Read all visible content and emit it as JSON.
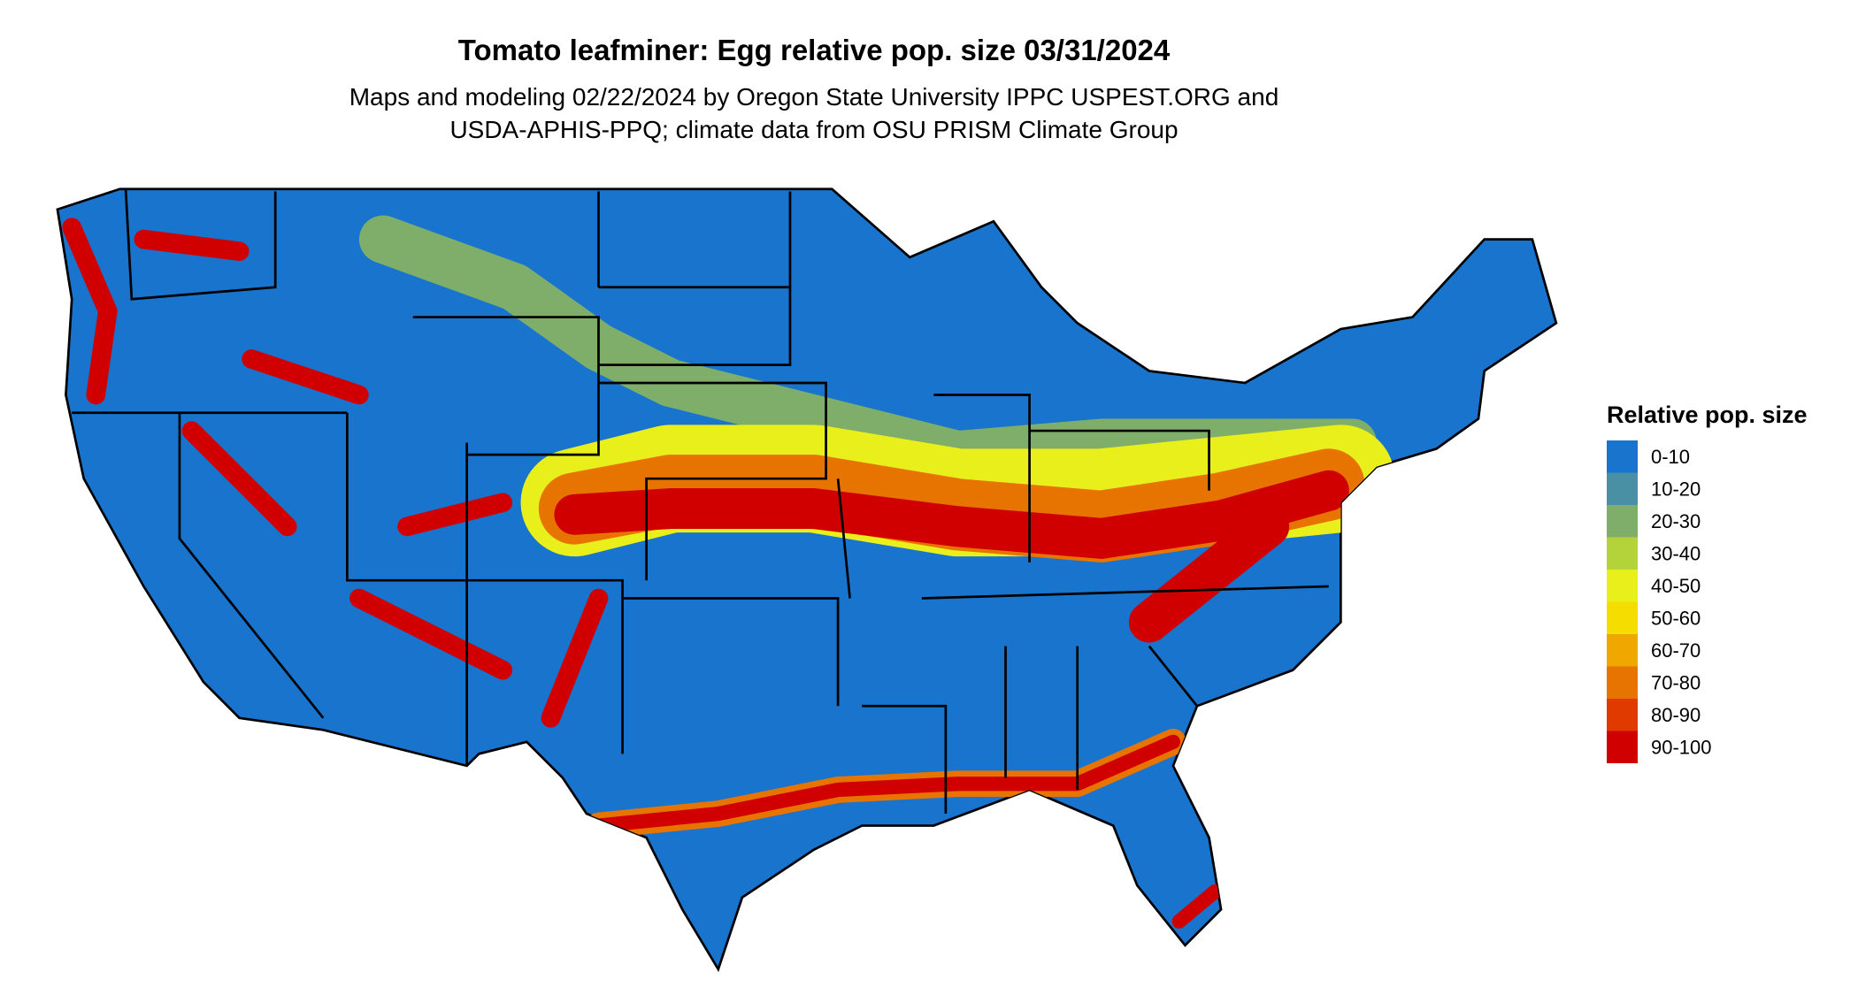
{
  "title": "Tomato leafminer: Egg relative pop. size 03/31/2024",
  "subtitle": [
    "Maps and modeling 02/22/2024 by Oregon State University IPPC USPEST.ORG and",
    "USDA-APHIS-PPQ; climate data from OSU PRISM Climate Group"
  ],
  "legend": {
    "title": "Relative pop. size",
    "items": [
      {
        "label": "0-10",
        "color": "#1874cd"
      },
      {
        "label": "10-20",
        "color": "#4a90a4"
      },
      {
        "label": "20-30",
        "color": "#7fae6a"
      },
      {
        "label": "30-40",
        "color": "#b4d23a"
      },
      {
        "label": "40-50",
        "color": "#e8ef1a"
      },
      {
        "label": "50-60",
        "color": "#f6dd00"
      },
      {
        "label": "60-70",
        "color": "#f0a800"
      },
      {
        "label": "70-80",
        "color": "#e87400"
      },
      {
        "label": "80-90",
        "color": "#e03a00"
      },
      {
        "label": "90-100",
        "color": "#d00000"
      }
    ]
  }
}
